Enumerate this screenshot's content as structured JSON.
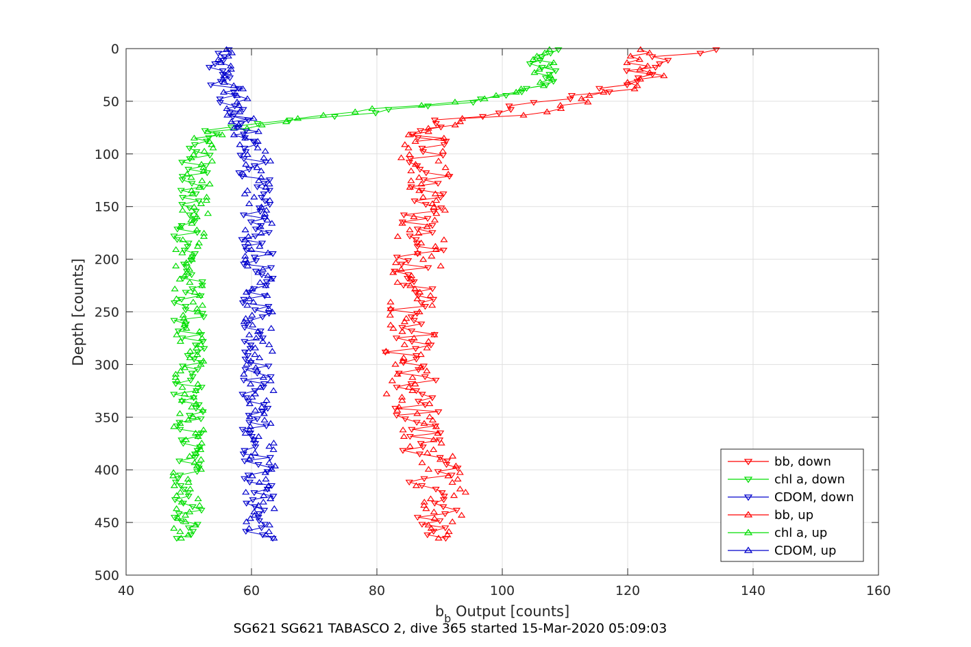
{
  "chart_data": {
    "type": "scatter",
    "title": "",
    "caption": "SG621 SG621 TABASCO 2, dive 365 started 15-Mar-2020 05:09:03",
    "xlabel_main": "b",
    "xlabel_sub": "b",
    "xlabel_rest": " Output [counts]",
    "ylabel": "Depth [counts]",
    "xlim": [
      40,
      160
    ],
    "ylim": [
      0,
      500
    ],
    "y_reversed": true,
    "grid": true,
    "legend_placement": "bottom-right",
    "x_ticks": [
      40,
      60,
      80,
      100,
      120,
      140,
      160
    ],
    "y_ticks": [
      0,
      50,
      100,
      150,
      200,
      250,
      300,
      350,
      400,
      450,
      500
    ],
    "series": [
      {
        "name": "bb, down",
        "color": "#ff0000",
        "marker": "triangle-down",
        "profile": [
          [
            0,
            126
          ],
          [
            2,
            140
          ],
          [
            8,
            122
          ],
          [
            15,
            124
          ],
          [
            25,
            121
          ],
          [
            35,
            118
          ],
          [
            45,
            113
          ],
          [
            52,
            106
          ],
          [
            58,
            99
          ],
          [
            65,
            94
          ],
          [
            72,
            89
          ],
          [
            80,
            87.5
          ],
          [
            100,
            88
          ],
          [
            150,
            87.5
          ],
          [
            200,
            87
          ],
          [
            250,
            86
          ],
          [
            300,
            85
          ],
          [
            350,
            86.5
          ],
          [
            400,
            89
          ],
          [
            450,
            89.5
          ],
          [
            465,
            89.5
          ]
        ],
        "spread": 4
      },
      {
        "name": "chl a, down",
        "color": "#00dd00",
        "marker": "triangle-down",
        "profile": [
          [
            0,
            110
          ],
          [
            5,
            108
          ],
          [
            15,
            106
          ],
          [
            30,
            107
          ],
          [
            40,
            104
          ],
          [
            48,
            98
          ],
          [
            55,
            88
          ],
          [
            62,
            78
          ],
          [
            70,
            64
          ],
          [
            78,
            54
          ],
          [
            85,
            52
          ],
          [
            95,
            51.5
          ],
          [
            130,
            50
          ],
          [
            200,
            50
          ],
          [
            300,
            50
          ],
          [
            400,
            50
          ],
          [
            465,
            50
          ]
        ],
        "spread": 2.5
      },
      {
        "name": "CDOM, down",
        "color": "#0000cc",
        "marker": "triangle-down",
        "profile": [
          [
            0,
            55
          ],
          [
            20,
            55
          ],
          [
            45,
            56
          ],
          [
            70,
            57.5
          ],
          [
            100,
            60.5
          ],
          [
            150,
            60.5
          ],
          [
            200,
            61
          ],
          [
            300,
            61
          ],
          [
            400,
            61
          ],
          [
            465,
            61.5
          ]
        ],
        "spread": 2.5
      },
      {
        "name": "bb, up",
        "color": "#ff0000",
        "marker": "triangle-up",
        "profile": [
          [
            0,
            120
          ],
          [
            10,
            122
          ],
          [
            25,
            124
          ],
          [
            40,
            117
          ],
          [
            50,
            112
          ],
          [
            60,
            104
          ],
          [
            70,
            92
          ],
          [
            80,
            88
          ],
          [
            150,
            87.5
          ],
          [
            250,
            86
          ],
          [
            300,
            84.5
          ],
          [
            350,
            86
          ],
          [
            400,
            90
          ],
          [
            465,
            90.5
          ]
        ],
        "spread": 4
      },
      {
        "name": "chl a, up",
        "color": "#00dd00",
        "marker": "triangle-up",
        "profile": [
          [
            0,
            108
          ],
          [
            10,
            106
          ],
          [
            25,
            107
          ],
          [
            40,
            105
          ],
          [
            50,
            92
          ],
          [
            60,
            76
          ],
          [
            72,
            60
          ],
          [
            82,
            53
          ],
          [
            100,
            51.5
          ],
          [
            200,
            50
          ],
          [
            300,
            50
          ],
          [
            400,
            50
          ],
          [
            465,
            50
          ]
        ],
        "spread": 2.5
      },
      {
        "name": "CDOM, up",
        "color": "#0000cc",
        "marker": "triangle-up",
        "profile": [
          [
            0,
            56
          ],
          [
            30,
            56.5
          ],
          [
            60,
            58
          ],
          [
            100,
            61
          ],
          [
            200,
            61.5
          ],
          [
            300,
            61
          ],
          [
            400,
            61.5
          ],
          [
            465,
            61.5
          ]
        ],
        "spread": 2.5
      }
    ]
  }
}
